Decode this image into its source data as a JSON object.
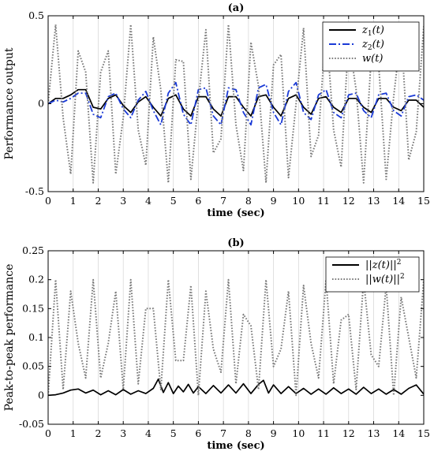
{
  "chart_data": [
    {
      "type": "line",
      "title": "(a)",
      "xlabel": "time (sec)",
      "ylabel": "Performance output",
      "xlim": [
        0,
        15
      ],
      "ylim": [
        -0.5,
        0.5
      ],
      "xticks": [
        "0",
        "1",
        "2",
        "3",
        "4",
        "5",
        "6",
        "7",
        "8",
        "9",
        "10",
        "11",
        "12",
        "13",
        "14",
        "15"
      ],
      "yticks": [
        "-0.5",
        "0",
        "0.5"
      ],
      "grid": "vertical",
      "legend": "top-right",
      "series": [
        {
          "name": "z_1(t)",
          "color": "#000000",
          "style": "solid",
          "x": [
            0,
            0.3,
            0.6,
            0.9,
            1.2,
            1.5,
            1.8,
            2.1,
            2.4,
            2.7,
            3.0,
            3.3,
            3.6,
            3.9,
            4.2,
            4.5,
            4.8,
            5.1,
            5.4,
            5.7,
            6.0,
            6.3,
            6.6,
            6.9,
            7.2,
            7.5,
            7.8,
            8.1,
            8.4,
            8.7,
            9.0,
            9.3,
            9.6,
            9.9,
            10.2,
            10.5,
            10.8,
            11.1,
            11.4,
            11.7,
            12.0,
            12.3,
            12.6,
            12.9,
            13.2,
            13.5,
            13.8,
            14.1,
            14.4,
            14.7,
            15.0
          ],
          "y": [
            0,
            0.03,
            0.03,
            0.05,
            0.08,
            0.08,
            -0.02,
            -0.03,
            0.03,
            0.05,
            -0.01,
            -0.05,
            0.01,
            0.04,
            -0.02,
            -0.07,
            0.03,
            0.05,
            -0.03,
            -0.07,
            0.04,
            0.04,
            -0.03,
            -0.07,
            0.04,
            0.04,
            -0.02,
            -0.07,
            0.04,
            0.05,
            -0.02,
            -0.07,
            0.03,
            0.05,
            -0.02,
            -0.06,
            0.03,
            0.04,
            -0.02,
            -0.05,
            0.03,
            0.03,
            -0.02,
            -0.05,
            0.03,
            0.03,
            -0.02,
            -0.04,
            0.02,
            0.02,
            -0.02
          ]
        },
        {
          "name": "z_2(t)",
          "color": "#1a3ad6",
          "style": "dashdot",
          "x": [
            0,
            0.3,
            0.6,
            0.9,
            1.2,
            1.5,
            1.8,
            2.1,
            2.4,
            2.7,
            3.0,
            3.3,
            3.6,
            3.9,
            4.2,
            4.5,
            4.8,
            5.1,
            5.4,
            5.7,
            6.0,
            6.3,
            6.6,
            6.9,
            7.2,
            7.5,
            7.8,
            8.1,
            8.4,
            8.7,
            9.0,
            9.3,
            9.6,
            9.9,
            10.2,
            10.5,
            10.8,
            11.1,
            11.4,
            11.7,
            12.0,
            12.3,
            12.6,
            12.9,
            13.2,
            13.5,
            13.8,
            14.1,
            14.4,
            14.7,
            15.0
          ],
          "y": [
            0,
            0.02,
            0.01,
            0.03,
            0.06,
            0.06,
            -0.06,
            -0.08,
            0.04,
            0.06,
            -0.03,
            -0.08,
            0.02,
            0.07,
            -0.04,
            -0.12,
            0.06,
            0.12,
            -0.06,
            -0.12,
            0.08,
            0.09,
            -0.07,
            -0.12,
            0.09,
            0.08,
            -0.05,
            -0.12,
            0.09,
            0.11,
            -0.05,
            -0.12,
            0.07,
            0.12,
            -0.05,
            -0.09,
            0.05,
            0.08,
            -0.05,
            -0.08,
            0.05,
            0.06,
            -0.04,
            -0.08,
            0.05,
            0.06,
            -0.04,
            -0.07,
            0.04,
            0.05,
            0.02
          ]
        },
        {
          "name": "w(t)",
          "color": "#7a7a7a",
          "style": "dotted",
          "x": [
            0,
            0.3,
            0.6,
            0.9,
            1.2,
            1.5,
            1.8,
            2.1,
            2.4,
            2.7,
            3.0,
            3.3,
            3.6,
            3.9,
            4.2,
            4.5,
            4.8,
            5.1,
            5.4,
            5.7,
            6.0,
            6.3,
            6.6,
            6.9,
            7.2,
            7.5,
            7.8,
            8.1,
            8.4,
            8.7,
            9.0,
            9.3,
            9.6,
            9.9,
            10.2,
            10.5,
            10.8,
            11.1,
            11.4,
            11.7,
            12.0,
            12.3,
            12.6,
            12.9,
            13.2,
            13.5,
            13.8,
            14.1,
            14.4,
            14.7,
            15.0
          ],
          "y": [
            0,
            0.45,
            -0.08,
            -0.4,
            0.3,
            0.18,
            -0.45,
            0.18,
            0.3,
            -0.4,
            -0.08,
            0.45,
            -0.15,
            -0.35,
            0.38,
            0.08,
            -0.45,
            0.25,
            0.24,
            -0.43,
            0.02,
            0.42,
            -0.28,
            -0.2,
            0.45,
            -0.12,
            -0.38,
            0.35,
            0.1,
            -0.45,
            0.22,
            0.28,
            -0.42,
            0.0,
            0.43,
            -0.3,
            -0.18,
            0.45,
            -0.15,
            -0.36,
            0.37,
            0.08,
            -0.45,
            0.26,
            0.22,
            -0.43,
            0.04,
            0.41,
            -0.32,
            -0.16,
            0.44
          ]
        }
      ]
    },
    {
      "type": "line",
      "title": "(b)",
      "xlabel": "time (sec)",
      "ylabel": "Peak-to-peak performance",
      "xlim": [
        0,
        15
      ],
      "ylim": [
        -0.05,
        0.25
      ],
      "xticks": [
        "0",
        "1",
        "2",
        "3",
        "4",
        "5",
        "6",
        "7",
        "8",
        "9",
        "10",
        "11",
        "12",
        "13",
        "14",
        "15"
      ],
      "yticks": [
        "-0.05",
        "0",
        "0.05",
        "0.1",
        "0.15",
        "0.2",
        "0.25"
      ],
      "grid": "vertical",
      "legend": "top-right",
      "series": [
        {
          "name": "||z(t)||^2",
          "color": "#000000",
          "style": "solid",
          "x": [
            0,
            0.3,
            0.6,
            0.9,
            1.2,
            1.5,
            1.8,
            2.1,
            2.4,
            2.7,
            3.0,
            3.3,
            3.6,
            3.9,
            4.2,
            4.4,
            4.6,
            4.8,
            5.0,
            5.2,
            5.4,
            5.6,
            5.8,
            6.0,
            6.3,
            6.6,
            6.9,
            7.2,
            7.5,
            7.8,
            8.1,
            8.4,
            8.6,
            8.8,
            9.0,
            9.3,
            9.6,
            9.9,
            10.2,
            10.5,
            10.8,
            11.1,
            11.4,
            11.7,
            12.0,
            12.3,
            12.6,
            12.9,
            13.2,
            13.5,
            13.8,
            14.1,
            14.4,
            14.7,
            15.0
          ],
          "y": [
            0,
            0.001,
            0.004,
            0.009,
            0.011,
            0.004,
            0.009,
            0.001,
            0.008,
            0.001,
            0.01,
            0.002,
            0.008,
            0.003,
            0.012,
            0.028,
            0.005,
            0.022,
            0.003,
            0.016,
            0.006,
            0.019,
            0.004,
            0.015,
            0.003,
            0.017,
            0.004,
            0.018,
            0.004,
            0.02,
            0.003,
            0.019,
            0.026,
            0.004,
            0.018,
            0.003,
            0.015,
            0.003,
            0.012,
            0.002,
            0.011,
            0.002,
            0.013,
            0.003,
            0.011,
            0.002,
            0.014,
            0.003,
            0.011,
            0.002,
            0.01,
            0.002,
            0.012,
            0.018,
            0.002
          ]
        },
        {
          "name": "||w(t)||^2",
          "color": "#7a7a7a",
          "style": "dotted",
          "x": [
            0,
            0.3,
            0.6,
            0.9,
            1.2,
            1.5,
            1.8,
            2.1,
            2.4,
            2.7,
            3.0,
            3.3,
            3.6,
            3.9,
            4.2,
            4.5,
            4.8,
            5.1,
            5.4,
            5.7,
            6.0,
            6.3,
            6.6,
            6.9,
            7.2,
            7.5,
            7.8,
            8.1,
            8.4,
            8.7,
            9.0,
            9.3,
            9.6,
            9.9,
            10.2,
            10.5,
            10.8,
            11.1,
            11.4,
            11.7,
            12.0,
            12.3,
            12.6,
            12.9,
            13.2,
            13.5,
            13.8,
            14.1,
            14.4,
            14.7,
            15.0
          ],
          "y": [
            0,
            0.2,
            0.01,
            0.18,
            0.09,
            0.03,
            0.2,
            0.03,
            0.09,
            0.18,
            0.01,
            0.2,
            0.02,
            0.15,
            0.15,
            0.01,
            0.2,
            0.06,
            0.06,
            0.19,
            0.0,
            0.18,
            0.08,
            0.04,
            0.2,
            0.02,
            0.14,
            0.12,
            0.01,
            0.2,
            0.05,
            0.08,
            0.18,
            0.0,
            0.19,
            0.09,
            0.03,
            0.2,
            0.02,
            0.13,
            0.14,
            0.01,
            0.2,
            0.07,
            0.05,
            0.19,
            0.0,
            0.17,
            0.1,
            0.03,
            0.2
          ]
        }
      ]
    }
  ]
}
